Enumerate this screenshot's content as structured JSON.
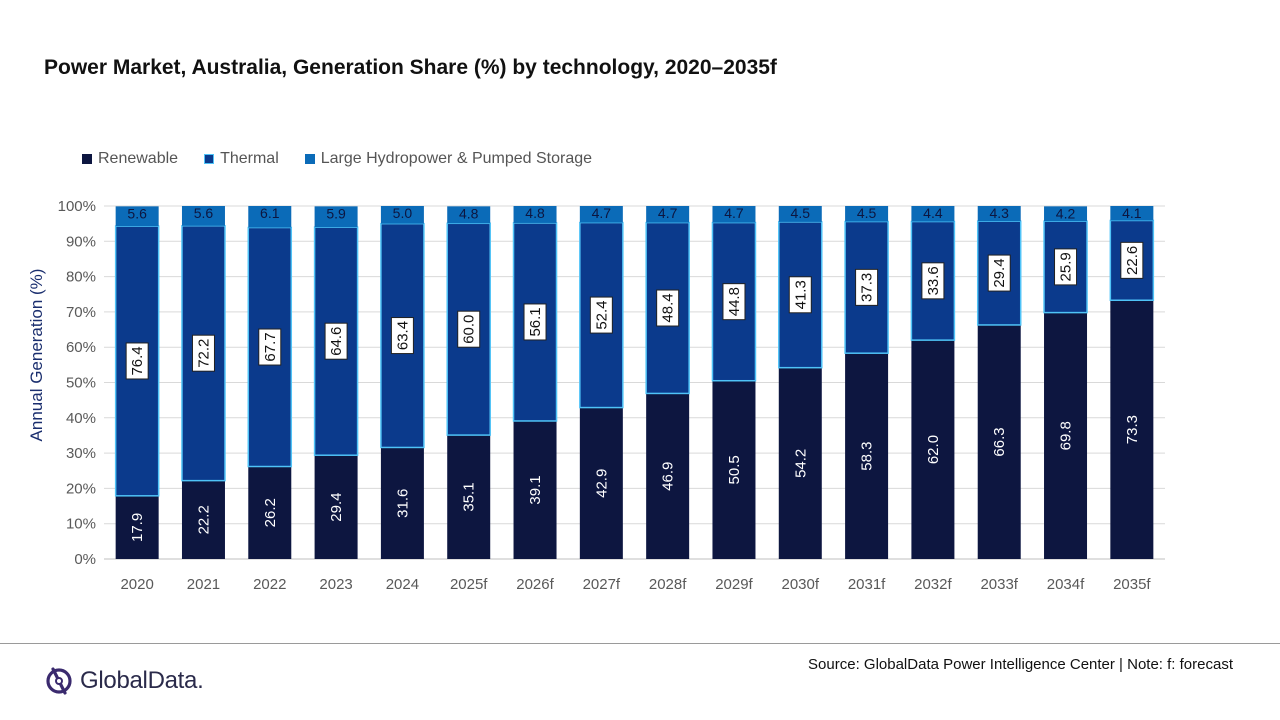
{
  "title": "Power Market, Australia, Generation Share (%) by technology, 2020–2035f",
  "legend": [
    {
      "label": "Renewable",
      "color": "#0d1640",
      "border": "#0d1640"
    },
    {
      "label": "Thermal",
      "color": "#0b3a8c",
      "border": "#4fc3f7"
    },
    {
      "label": "Large Hydropower & Pumped Storage",
      "color": "#0b6bb8",
      "border": "#0b6bb8"
    }
  ],
  "footer": {
    "source": "Source: GlobalData Power Intelligence Center | Note: f: forecast",
    "logo_text": "GlobalData."
  },
  "chart_data": {
    "type": "bar",
    "stacked": true,
    "title": "Power Market, Australia, Generation Share (%) by technology, 2020–2035f",
    "xlabel": "",
    "ylabel": "Annual Generation (%)",
    "ylim": [
      0,
      100
    ],
    "yticks": [
      "0%",
      "10%",
      "20%",
      "30%",
      "40%",
      "50%",
      "60%",
      "70%",
      "80%",
      "90%",
      "100%"
    ],
    "categories": [
      "2020",
      "2021",
      "2022",
      "2023",
      "2024",
      "2025f",
      "2026f",
      "2027f",
      "2028f",
      "2029f",
      "2030f",
      "2031f",
      "2032f",
      "2033f",
      "2034f",
      "2035f"
    ],
    "series": [
      {
        "name": "Renewable",
        "values": [
          17.9,
          22.2,
          26.2,
          29.4,
          31.6,
          35.1,
          39.1,
          42.9,
          46.9,
          50.5,
          54.2,
          58.3,
          62.0,
          66.3,
          69.8,
          73.3
        ]
      },
      {
        "name": "Thermal",
        "values": [
          76.4,
          72.2,
          67.7,
          64.6,
          63.4,
          60.0,
          56.1,
          52.4,
          48.4,
          44.8,
          41.3,
          37.3,
          33.6,
          29.4,
          25.9,
          22.6
        ]
      },
      {
        "name": "Large Hydropower & Pumped Storage",
        "values": [
          5.6,
          5.6,
          6.1,
          5.9,
          5.0,
          4.8,
          4.8,
          4.7,
          4.7,
          4.7,
          4.5,
          4.5,
          4.4,
          4.3,
          4.2,
          4.1
        ]
      }
    ],
    "legend_position": "top-left",
    "grid": true
  }
}
